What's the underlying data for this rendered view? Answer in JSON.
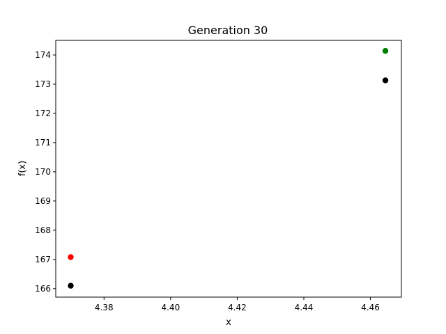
{
  "chart_data": {
    "type": "scatter",
    "title": "Generation 30",
    "xlabel": "x",
    "ylabel": "f(x)",
    "xlim": [
      4.3655,
      4.4693
    ],
    "ylim": [
      165.71,
      174.5
    ],
    "xticks": [
      "4.38",
      "4.40",
      "4.42",
      "4.44",
      "4.46"
    ],
    "yticks": [
      "166",
      "167",
      "168",
      "169",
      "170",
      "171",
      "172",
      "173",
      "174"
    ],
    "grid": false,
    "legend": "none",
    "series": [
      {
        "color": "#ff0000",
        "points": [
          {
            "x": 4.37,
            "y": 167.08
          }
        ]
      },
      {
        "color": "#008000",
        "points": [
          {
            "x": 4.4645,
            "y": 174.14
          }
        ]
      },
      {
        "color": "#000000",
        "points": [
          {
            "x": 4.37,
            "y": 166.1
          },
          {
            "x": 4.4645,
            "y": 173.13
          }
        ]
      }
    ]
  }
}
